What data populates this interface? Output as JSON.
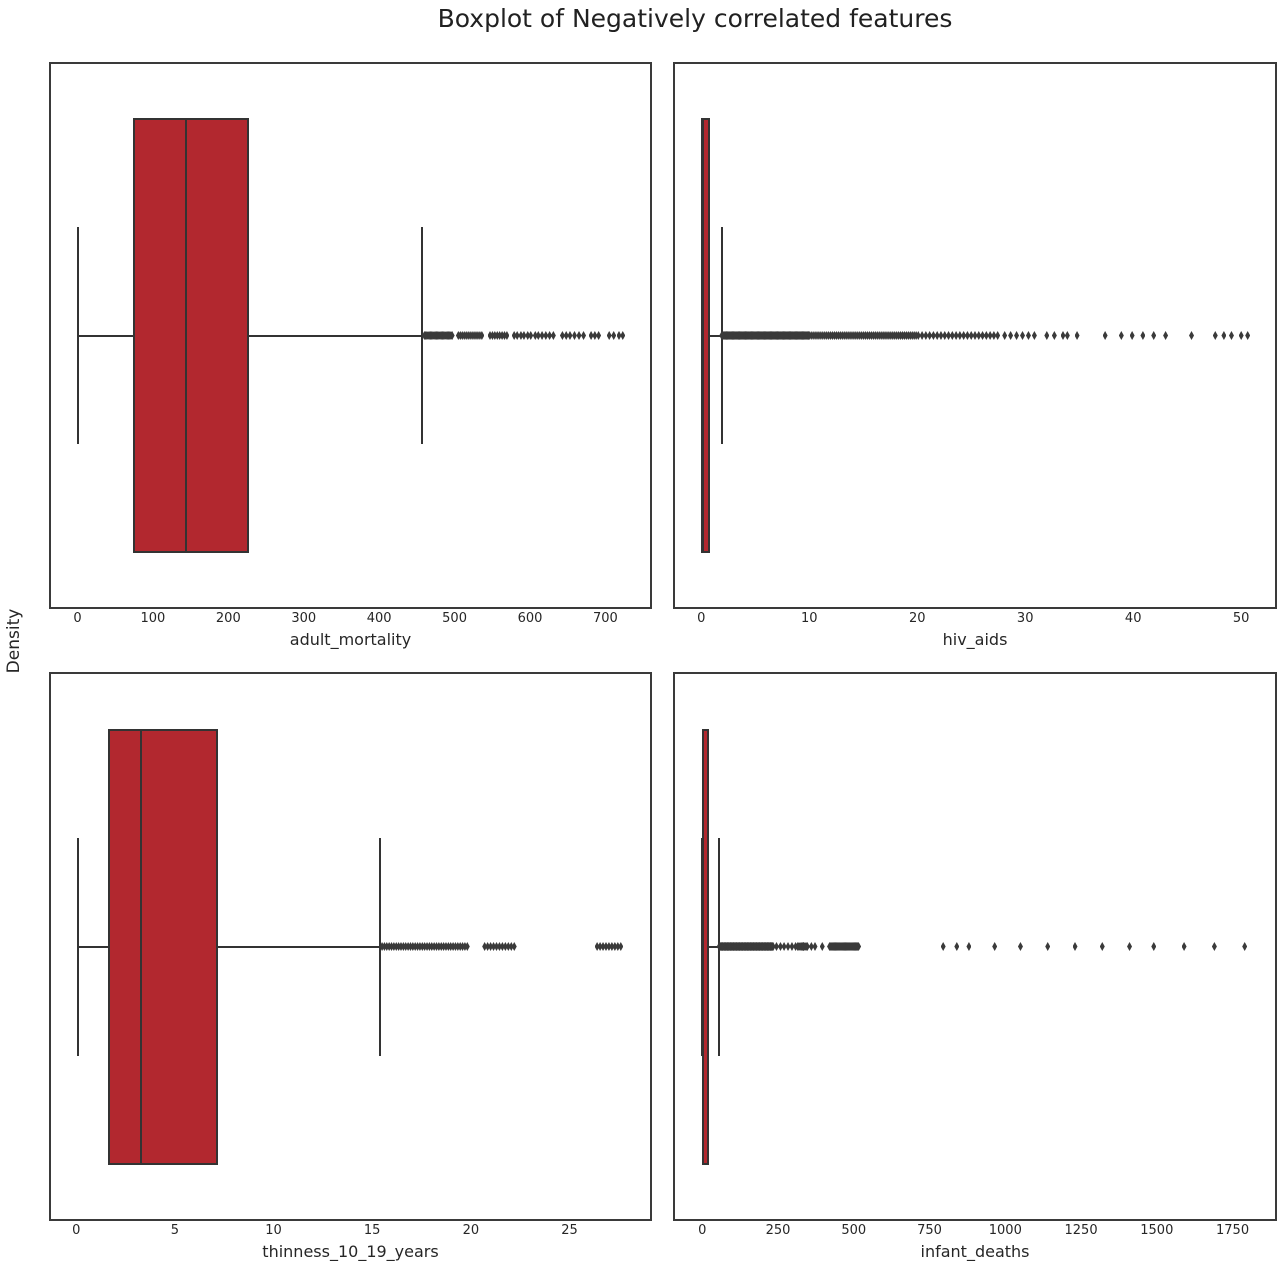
{
  "title": "Boxplot of Negatively correlated features",
  "ylabel": "Density",
  "style": {
    "box_fill": "#b2282f",
    "line_color": "#333333",
    "flier_color": "#3a3a3a",
    "text_color": "#262626",
    "background": "#ffffff",
    "flier_marker": "thin-diamond",
    "legend": "none",
    "grid": "off"
  },
  "chart_data": [
    {
      "type": "boxplot",
      "orientation": "horizontal",
      "feature": "adult_mortality",
      "xlabel": "adult_mortality",
      "xlim": [
        -35.1,
        759.1
      ],
      "xticks": [
        0,
        100,
        200,
        300,
        400,
        500,
        600,
        700
      ],
      "stats": {
        "whisker_low": 1,
        "q1": 74,
        "median": 144,
        "q3": 228,
        "whisker_high": 457
      },
      "outlier_runs": [
        [
          460,
          497,
          1.6
        ],
        [
          505,
          537,
          2.6
        ],
        [
          547,
          572,
          3.2
        ]
      ],
      "outliers": [
        579,
        583,
        588,
        592,
        597,
        601,
        607,
        611,
        616,
        621,
        626,
        631,
        643,
        648,
        653,
        659,
        665,
        671,
        681,
        686,
        691,
        705,
        711,
        718,
        723
      ]
    },
    {
      "type": "boxplot",
      "orientation": "horizontal",
      "feature": "hiv_aids",
      "xlabel": "hiv_aids",
      "xlim": [
        -2.43,
        53.13
      ],
      "xticks": [
        0,
        10,
        20,
        30,
        40,
        50
      ],
      "stats": {
        "whisker_low": 0.1,
        "q1": 0.1,
        "median": 0.1,
        "q3": 0.8,
        "whisker_high": 1.9
      },
      "outlier_runs": [
        [
          1.9,
          10,
          0.08
        ],
        [
          10,
          20,
          0.18
        ],
        [
          20.1,
          27.7,
          0.35
        ],
        [
          28.1,
          31.3,
          0.55
        ]
      ],
      "outliers": [
        32.0,
        32.7,
        33.5,
        33.9,
        34.8,
        37.4,
        38.9,
        39.9,
        40.9,
        41.9,
        43.0,
        45.4,
        47.6,
        48.4,
        49.1,
        50.0,
        50.6
      ]
    },
    {
      "type": "boxplot",
      "orientation": "horizontal",
      "feature": "thinness_10_19_years",
      "xlabel": "thinness_10_19_years",
      "xlim": [
        -1.28,
        29.08
      ],
      "xticks": [
        0,
        5,
        10,
        15,
        20,
        25
      ],
      "stats": {
        "whisker_low": 0.1,
        "q1": 1.6,
        "median": 3.3,
        "q3": 7.2,
        "whisker_high": 15.4
      },
      "outlier_runs": [
        [
          15.5,
          19.9,
          0.12
        ],
        [
          20.7,
          22.3,
          0.15
        ],
        [
          26.4,
          27.6,
          0.15
        ]
      ],
      "outliers": []
    },
    {
      "type": "boxplot",
      "orientation": "horizontal",
      "feature": "infant_deaths",
      "xlabel": "infant_deaths",
      "xlim": [
        -90,
        1890
      ],
      "xticks": [
        0,
        250,
        500,
        750,
        1000,
        1250,
        1500,
        1750
      ],
      "stats": {
        "whisker_low": 0,
        "q1": 0,
        "median": 3,
        "q3": 22,
        "whisker_high": 54
      },
      "outlier_runs": [
        [
          56,
          235,
          2
        ],
        [
          315,
          350,
          4
        ],
        [
          420,
          518,
          3
        ]
      ],
      "outliers": [
        245,
        258,
        270,
        283,
        296,
        308,
        333,
        360,
        372,
        396,
        795,
        840,
        880,
        965,
        1050,
        1140,
        1230,
        1320,
        1410,
        1490,
        1590,
        1690,
        1790
      ]
    }
  ]
}
